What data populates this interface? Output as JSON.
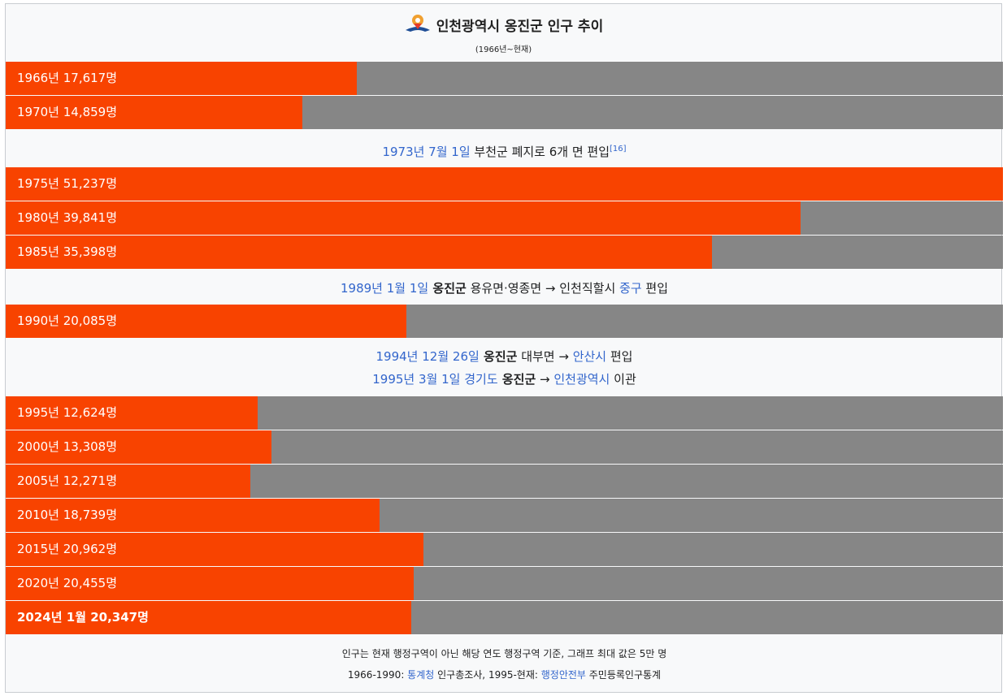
{
  "title": "인천광역시 옹진군 인구 추이",
  "subtitle": "(1966년~현재)",
  "logo_icon": "incheon-emblem-icon",
  "colors": {
    "bar": "#f84300",
    "track": "#868686",
    "link": "#3366cc",
    "background": "#f8f9fa"
  },
  "chart_data": {
    "type": "bar",
    "orientation": "horizontal",
    "max": 50000,
    "categories": [
      "1966년",
      "1970년",
      "1975년",
      "1980년",
      "1985년",
      "1990년",
      "1995년",
      "2000년",
      "2005년",
      "2010년",
      "2015년",
      "2020년",
      "2024년 1월"
    ],
    "values": [
      17617,
      14859,
      51237,
      39841,
      35398,
      20085,
      12624,
      13308,
      12271,
      18739,
      20962,
      20455,
      20347
    ],
    "labels": [
      "1966년 17,617명",
      "1970년 14,859명",
      "1975년 51,237명",
      "1980년 39,841명",
      "1985년 35,398명",
      "1990년 20,085명",
      "1995년 12,624명",
      "2000년 13,308명",
      "2005년 12,271명",
      "2010년 18,739명",
      "2015년 20,962명",
      "2020년 20,455명",
      "2024년 1월 20,347명"
    ]
  },
  "notes": {
    "n1": {
      "date": "1973년 7월 1일",
      "text": " 부천군 폐지로 6개 면 편입",
      "ref": "[16]"
    },
    "n2": {
      "date": "1989년 1월 1일",
      "bold": " 옹진군",
      "text": " 용유면·영종면 → 인천직할시 ",
      "link": "중구",
      "tail": " 편입"
    },
    "n3": {
      "date": "1994년 12월 26일",
      "bold": " 옹진군",
      "text": " 대부면 → ",
      "link": "안산시",
      "tail": " 편입"
    },
    "n4": {
      "date": "1995년 3월 1일",
      "link1": " 경기도",
      "bold": " 옹진군",
      "arrow": " → ",
      "link2": "인천광역시",
      "tail": " 이관"
    }
  },
  "footer": {
    "line1": "인구는 현재 행정구역이 아닌 해당 연도 행정구역 기준, 그래프 최대 값은 5만 명",
    "line2_a": "1966-1990: ",
    "line2_link1": "통계청",
    "line2_b": " 인구총조사, 1995-현재: ",
    "line2_link2": "행정안전부",
    "line2_c": " 주민등록인구통계"
  }
}
